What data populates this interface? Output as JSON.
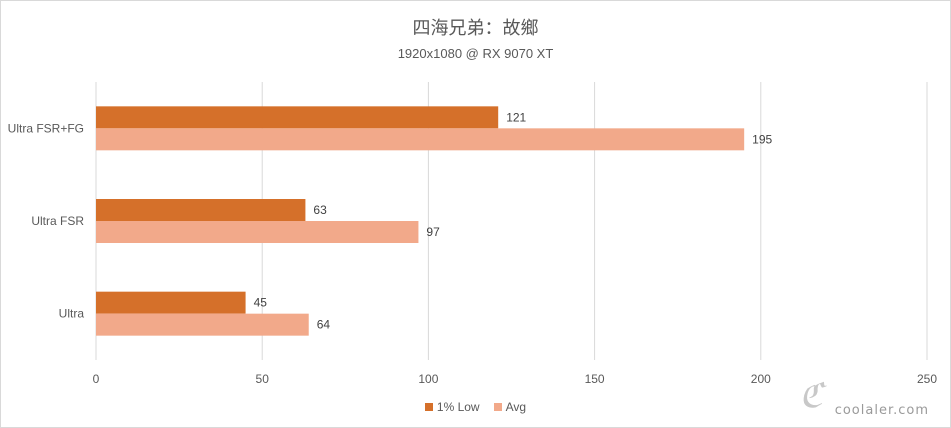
{
  "chart_data": {
    "type": "bar",
    "orientation": "horizontal",
    "title": "四海兄弟：故鄉",
    "subtitle": "1920x1080 @ RX 9070 XT",
    "categories": [
      "Ultra FSR+FG",
      "Ultra FSR",
      "Ultra"
    ],
    "series": [
      {
        "name": "1% Low",
        "values": [
          121,
          63,
          45
        ],
        "color": "#d5702a"
      },
      {
        "name": "Avg",
        "values": [
          195,
          97,
          64
        ],
        "color": "#f2a98a"
      }
    ],
    "xlim": [
      0,
      250
    ],
    "xticks": [
      0,
      50,
      100,
      150,
      200,
      250
    ],
    "grid": true,
    "legend_position": "bottom"
  },
  "watermark": "coolaler.com"
}
